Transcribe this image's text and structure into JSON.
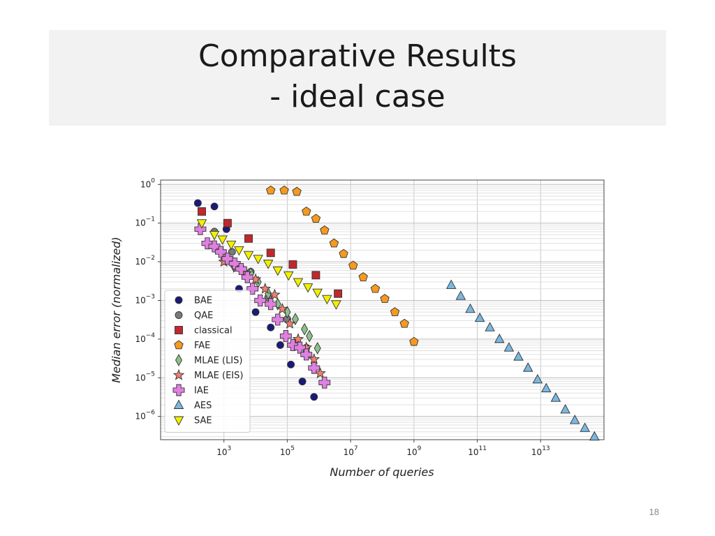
{
  "slide": {
    "title": "Comparative Results",
    "subtitle": "- ideal case",
    "page_number": "18"
  },
  "chart_data": {
    "type": "scatter",
    "title": "",
    "xlabel": "Number of queries",
    "ylabel": "Median error (normalized)",
    "x_scale": "log",
    "y_scale": "log",
    "xlim": [
      10,
      1000000000000000.0
    ],
    "ylim": [
      2.5e-07,
      1.3
    ],
    "x_ticks": [
      {
        "value": 1000.0,
        "base": "10",
        "exp": "3"
      },
      {
        "value": 100000.0,
        "base": "10",
        "exp": "5"
      },
      {
        "value": 10000000.0,
        "base": "10",
        "exp": "7"
      },
      {
        "value": 1000000000.0,
        "base": "10",
        "exp": "9"
      },
      {
        "value": 100000000000.0,
        "base": "10",
        "exp": "11"
      },
      {
        "value": 10000000000000.0,
        "base": "10",
        "exp": "13"
      }
    ],
    "y_ticks": [
      {
        "value": 1,
        "base": "10",
        "exp": "0"
      },
      {
        "value": 0.1,
        "base": "10",
        "exp": "−1"
      },
      {
        "value": 0.01,
        "base": "10",
        "exp": "−2"
      },
      {
        "value": 0.001,
        "base": "10",
        "exp": "−3"
      },
      {
        "value": 0.0001,
        "base": "10",
        "exp": "−4"
      },
      {
        "value": 1e-05,
        "base": "10",
        "exp": "−5"
      },
      {
        "value": 1e-06,
        "base": "10",
        "exp": "−6"
      }
    ],
    "grid": true,
    "legend_position": "lower-left",
    "series": [
      {
        "name": "BAE",
        "marker": "circle",
        "color": "#1a1a7a",
        "x": [
          150,
          500,
          1200,
          3000,
          10000,
          30000,
          60000,
          130000,
          300000,
          700000
        ],
        "y": [
          0.33,
          0.27,
          0.07,
          0.002,
          0.0005,
          0.0002,
          7e-05,
          2.2e-05,
          8e-06,
          3.2e-06
        ]
      },
      {
        "name": "QAE",
        "marker": "circle",
        "color": "#7a7a7a",
        "x": [
          500,
          1800,
          7000,
          25000,
          100000,
          400000
        ],
        "y": [
          0.06,
          0.018,
          0.0055,
          0.0012,
          0.00033,
          6e-05
        ]
      },
      {
        "name": "classical",
        "marker": "square",
        "color": "#c0282c",
        "x": [
          200,
          1300,
          6000,
          30000,
          150000,
          800000,
          4000000
        ],
        "y": [
          0.2,
          0.1,
          0.04,
          0.017,
          0.0085,
          0.0045,
          0.0015
        ]
      },
      {
        "name": "FAE",
        "marker": "pentagon",
        "color": "#f59a1f",
        "x": [
          30000,
          80000,
          200000,
          400000,
          800000,
          1500000,
          3000000,
          6000000,
          12000000,
          25000000,
          60000000,
          120000000,
          250000000,
          500000000,
          1000000000
        ],
        "y": [
          0.7,
          0.7,
          0.65,
          0.2,
          0.13,
          0.065,
          0.03,
          0.016,
          0.008,
          0.004,
          0.002,
          0.0011,
          0.0005,
          0.00025,
          8.5e-05
        ]
      },
      {
        "name": "MLAE (LIS)",
        "marker": "diamond",
        "color": "#8cc08c",
        "x": [
          500,
          1000,
          2000,
          4000,
          7000,
          12000,
          25000,
          50000,
          100000,
          180000,
          350000,
          500000,
          900000
        ],
        "y": [
          0.025,
          0.012,
          0.008,
          0.006,
          0.005,
          0.003,
          0.0015,
          0.0008,
          0.0005,
          0.00033,
          0.00018,
          0.00012,
          5.8e-05
        ]
      },
      {
        "name": "MLAE (EIS)",
        "marker": "star",
        "color": "#f08070",
        "x": [
          1000,
          2500,
          5000,
          10000,
          20000,
          40000,
          70000,
          120000,
          220000,
          400000,
          700000,
          1100000
        ],
        "y": [
          0.01,
          0.007,
          0.005,
          0.0035,
          0.002,
          0.0014,
          0.0006,
          0.00025,
          0.0001,
          6e-05,
          3e-05,
          1.3e-05
        ]
      },
      {
        "name": "IAE",
        "marker": "plus",
        "color": "#e080e0",
        "x": [
          180,
          300,
          500,
          800,
          1300,
          2200,
          3500,
          5500,
          8000,
          14000,
          30000,
          50000,
          90000,
          150000,
          250000,
          400000,
          700000,
          1500000
        ],
        "y": [
          0.07,
          0.03,
          0.025,
          0.018,
          0.012,
          0.009,
          0.0065,
          0.004,
          0.002,
          0.001,
          0.0008,
          0.00032,
          0.00012,
          7e-05,
          6e-05,
          4e-05,
          1.8e-05,
          7.5e-06
        ]
      },
      {
        "name": "AES",
        "marker": "triangle-up",
        "color": "#7ab8e0",
        "x": [
          15000000000,
          30000000000,
          60000000000,
          120000000000,
          250000000000,
          500000000000,
          1000000000000,
          2000000000000,
          4000000000000,
          8000000000000,
          15000000000000,
          30000000000000,
          60000000000000,
          120000000000000,
          250000000000000,
          500000000000000
        ],
        "y": [
          0.0025,
          0.0013,
          0.0006,
          0.00035,
          0.0002,
          0.0001,
          6e-05,
          3.5e-05,
          1.8e-05,
          9e-06,
          5.3e-06,
          3e-06,
          1.5e-06,
          8e-07,
          5e-07,
          3e-07
        ]
      },
      {
        "name": "SAE",
        "marker": "triangle-down",
        "color": "#f0f000",
        "x": [
          200,
          500,
          900,
          1700,
          3000,
          6000,
          12000,
          25000,
          50000,
          110000,
          220000,
          450000,
          900000,
          1800000,
          3500000
        ],
        "y": [
          0.1,
          0.05,
          0.038,
          0.028,
          0.02,
          0.015,
          0.012,
          0.009,
          0.006,
          0.0045,
          0.003,
          0.0022,
          0.0016,
          0.0011,
          0.0008
        ]
      }
    ]
  }
}
